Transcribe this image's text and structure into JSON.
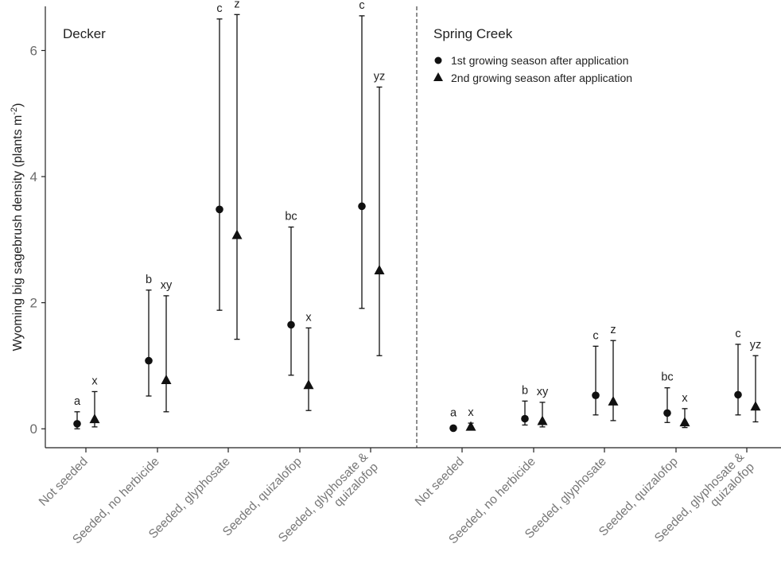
{
  "chart_data": {
    "type": "scatter",
    "ylabel": "Wyoming big sagebrush density (plants m",
    "ylabel_sup": "-2",
    "ylabel_end": ")",
    "ylim": [
      -0.3,
      6.7
    ],
    "yticks": [
      0,
      2,
      4,
      6
    ],
    "panels": [
      "Decker",
      "Spring Creek"
    ],
    "categories": [
      "Not seeded",
      "Seeded, no herbicide",
      "Seeded, glyphosate",
      "Seeded, quizalofop",
      "Seeded, glyphosate &\nquizalofop"
    ],
    "legend_position": "top-right panel",
    "series": [
      {
        "name": "1st growing season after application",
        "marker": "circle",
        "points": [
          {
            "panel": "Decker",
            "category": "Not seeded",
            "y": 0.08,
            "lo": 0.0,
            "hi": 0.27,
            "letter": "a"
          },
          {
            "panel": "Decker",
            "category": "Seeded, no herbicide",
            "y": 1.08,
            "lo": 0.52,
            "hi": 2.2,
            "letter": "b"
          },
          {
            "panel": "Decker",
            "category": "Seeded, glyphosate",
            "y": 3.48,
            "lo": 1.88,
            "hi": 6.5,
            "letter": "c"
          },
          {
            "panel": "Decker",
            "category": "Seeded, quizalofop",
            "y": 1.65,
            "lo": 0.85,
            "hi": 3.2,
            "letter": "bc"
          },
          {
            "panel": "Decker",
            "category": "Seeded, glyphosate &\nquizalofop",
            "y": 3.53,
            "lo": 1.91,
            "hi": 6.55,
            "letter": "c"
          },
          {
            "panel": "Spring Creek",
            "category": "Not seeded",
            "y": 0.01,
            "lo": 0.0,
            "hi": 0.0,
            "letter": "a"
          },
          {
            "panel": "Spring Creek",
            "category": "Seeded, no herbicide",
            "y": 0.16,
            "lo": 0.06,
            "hi": 0.44,
            "letter": "b"
          },
          {
            "panel": "Spring Creek",
            "category": "Seeded, glyphosate",
            "y": 0.53,
            "lo": 0.22,
            "hi": 1.31,
            "letter": "c"
          },
          {
            "panel": "Spring Creek",
            "category": "Seeded, quizalofop",
            "y": 0.25,
            "lo": 0.1,
            "hi": 0.65,
            "letter": "bc"
          },
          {
            "panel": "Spring Creek",
            "category": "Seeded, glyphosate &\nquizalofop",
            "y": 0.54,
            "lo": 0.22,
            "hi": 1.34,
            "letter": "c"
          }
        ]
      },
      {
        "name": "2nd growing season after application",
        "marker": "triangle",
        "points": [
          {
            "panel": "Decker",
            "category": "Not seeded",
            "y": 0.15,
            "lo": 0.03,
            "hi": 0.59,
            "letter": "x"
          },
          {
            "panel": "Decker",
            "category": "Seeded, no herbicide",
            "y": 0.77,
            "lo": 0.27,
            "hi": 2.11,
            "letter": "xy"
          },
          {
            "panel": "Decker",
            "category": "Seeded, glyphosate",
            "y": 3.07,
            "lo": 1.42,
            "hi": 6.57,
            "letter": "z"
          },
          {
            "panel": "Decker",
            "category": "Seeded, quizalofop",
            "y": 0.69,
            "lo": 0.29,
            "hi": 1.6,
            "letter": "x"
          },
          {
            "panel": "Decker",
            "category": "Seeded, glyphosate &\nquizalofop",
            "y": 2.51,
            "lo": 1.16,
            "hi": 5.42,
            "letter": "yz"
          },
          {
            "panel": "Spring Creek",
            "category": "Not seeded",
            "y": 0.03,
            "lo": 0.0,
            "hi": 0.09,
            "letter": "x"
          },
          {
            "panel": "Spring Creek",
            "category": "Seeded, no herbicide",
            "y": 0.12,
            "lo": 0.03,
            "hi": 0.42,
            "letter": "xy"
          },
          {
            "panel": "Spring Creek",
            "category": "Seeded, glyphosate",
            "y": 0.43,
            "lo": 0.13,
            "hi": 1.4,
            "letter": "z"
          },
          {
            "panel": "Spring Creek",
            "category": "Seeded, quizalofop",
            "y": 0.1,
            "lo": 0.02,
            "hi": 0.32,
            "letter": "x"
          },
          {
            "panel": "Spring Creek",
            "category": "Seeded, glyphosate &\nquizalofop",
            "y": 0.35,
            "lo": 0.11,
            "hi": 1.16,
            "letter": "yz"
          }
        ]
      }
    ]
  }
}
